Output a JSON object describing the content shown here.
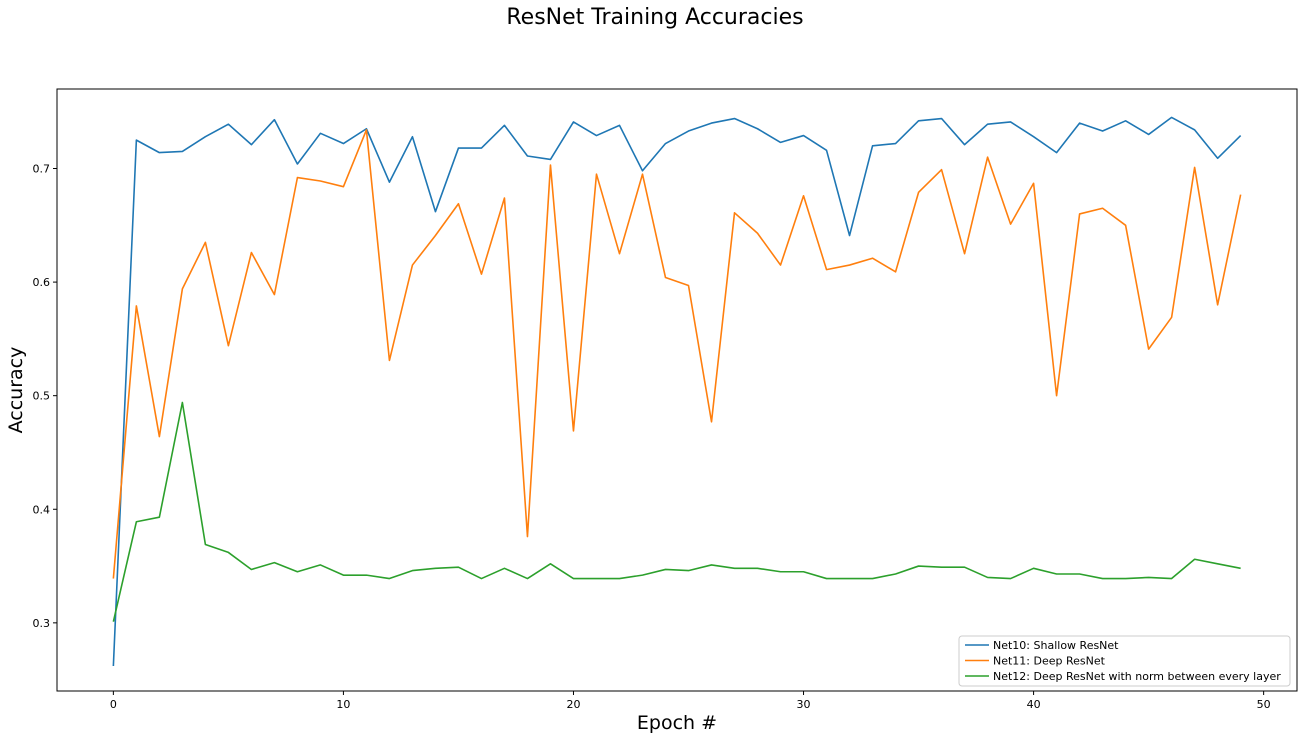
{
  "chart_data": {
    "type": "line",
    "title": "ResNet Training Accuracies",
    "xlabel": "Epoch #",
    "ylabel": "Accuracy",
    "xlim": [
      -2.45,
      51.45
    ],
    "ylim": [
      0.24,
      0.77
    ],
    "xticks": [
      0,
      10,
      20,
      30,
      40,
      50
    ],
    "yticks": [
      0.3,
      0.4,
      0.5,
      0.6,
      0.7
    ],
    "grid": false,
    "legend_position": "lower-right",
    "series": [
      {
        "name": "Net10: Shallow ResNet",
        "color": "#1f77b4",
        "values": [
          0.262,
          0.725,
          0.714,
          0.715,
          0.728,
          0.739,
          0.721,
          0.743,
          0.704,
          0.731,
          0.722,
          0.735,
          0.688,
          0.728,
          0.662,
          0.718,
          0.718,
          0.738,
          0.711,
          0.708,
          0.741,
          0.729,
          0.738,
          0.698,
          0.722,
          0.733,
          0.74,
          0.744,
          0.735,
          0.723,
          0.729,
          0.716,
          0.641,
          0.72,
          0.722,
          0.742,
          0.744,
          0.721,
          0.739,
          0.741,
          0.728,
          0.714,
          0.74,
          0.733,
          0.742,
          0.73,
          0.745,
          0.734,
          0.709,
          0.729
        ]
      },
      {
        "name": "Net11: Deep ResNet",
        "color": "#ff7f0e",
        "values": [
          0.339,
          0.579,
          0.464,
          0.594,
          0.635,
          0.544,
          0.626,
          0.589,
          0.692,
          0.689,
          0.684,
          0.734,
          0.531,
          0.615,
          0.641,
          0.669,
          0.607,
          0.674,
          0.376,
          0.703,
          0.469,
          0.695,
          0.625,
          0.695,
          0.604,
          0.597,
          0.477,
          0.661,
          0.643,
          0.615,
          0.676,
          0.611,
          0.615,
          0.621,
          0.609,
          0.679,
          0.699,
          0.625,
          0.71,
          0.651,
          0.687,
          0.5,
          0.66,
          0.665,
          0.65,
          0.541,
          0.569,
          0.701,
          0.58,
          0.677
        ]
      },
      {
        "name": "Net12: Deep ResNet with norm between every layer",
        "color": "#2ca02c",
        "values": [
          0.301,
          0.389,
          0.393,
          0.494,
          0.369,
          0.362,
          0.347,
          0.353,
          0.345,
          0.351,
          0.342,
          0.342,
          0.339,
          0.346,
          0.348,
          0.349,
          0.339,
          0.348,
          0.339,
          0.352,
          0.339,
          0.339,
          0.339,
          0.342,
          0.347,
          0.346,
          0.351,
          0.348,
          0.348,
          0.345,
          0.345,
          0.339,
          0.339,
          0.339,
          0.343,
          0.35,
          0.349,
          0.349,
          0.34,
          0.339,
          0.348,
          0.343,
          0.343,
          0.339,
          0.339,
          0.34,
          0.339,
          0.356,
          0.352,
          0.348
        ]
      }
    ]
  }
}
